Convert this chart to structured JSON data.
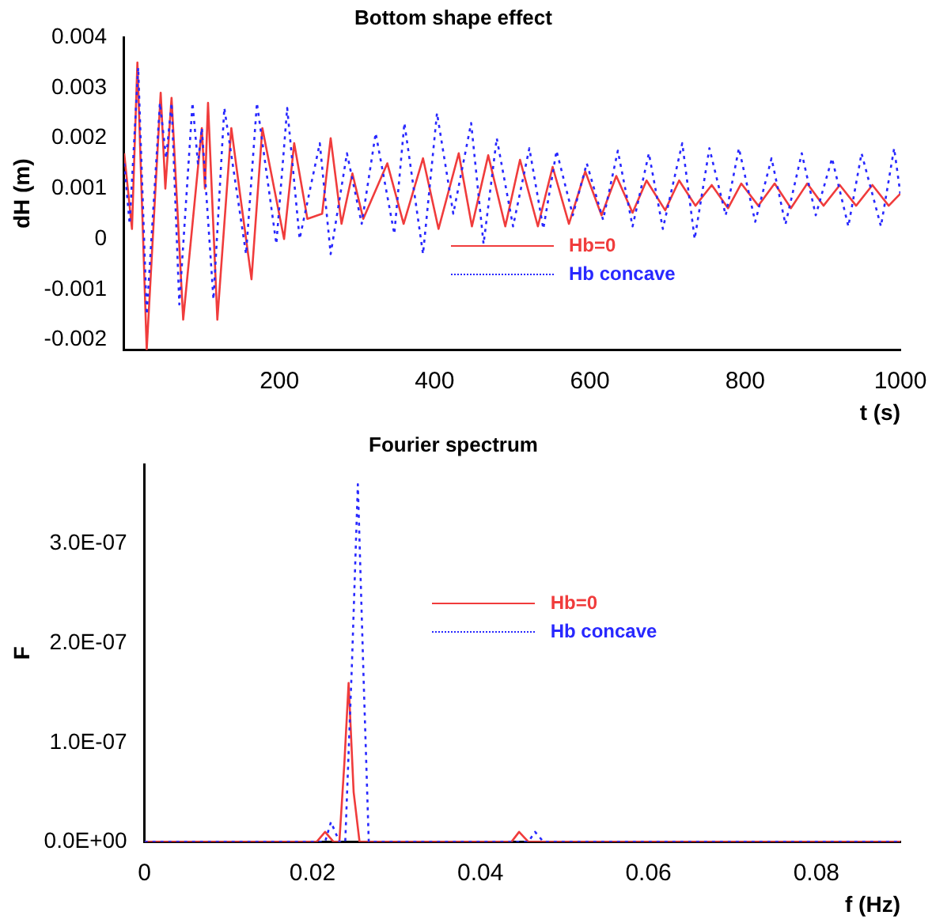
{
  "chart_data": [
    {
      "type": "line",
      "title": "Bottom shape effect",
      "xlabel": "t (s)",
      "ylabel": "dH (m)",
      "xlim": [
        0,
        1000
      ],
      "xticks": [
        200,
        400,
        600,
        800,
        1000
      ],
      "ylim": [
        -0.0022,
        0.004
      ],
      "yticks": [
        -0.002,
        -0.001,
        0,
        0.001,
        0.002,
        0.003,
        0.004
      ],
      "grid": false,
      "legend": "center",
      "marker": "none",
      "series": [
        {
          "name": "Hb=0",
          "color": "#f03c3c",
          "line_style": "solid",
          "x": [
            0,
            10,
            17,
            29,
            47,
            53,
            61,
            76,
            100,
            104,
            108,
            120,
            138,
            150,
            164,
            178,
            206,
            219,
            236,
            255,
            266,
            280,
            294,
            308,
            339,
            360,
            385,
            405,
            431,
            448,
            469,
            491,
            510,
            533,
            552,
            573,
            594,
            615,
            634,
            655,
            673,
            697,
            715,
            736,
            757,
            778,
            795,
            817,
            838,
            859,
            880,
            901,
            922,
            943,
            964,
            985,
            1000
          ],
          "values": [
            0.0017,
            0.0002,
            0.0035,
            -0.0022,
            0.0029,
            0.001,
            0.0028,
            -0.0016,
            0.0022,
            0.001,
            0.0027,
            -0.0016,
            0.0022,
            0.0008,
            -0.0008,
            0.0022,
            0,
            0.0019,
            0.0004,
            0.0005,
            0.002,
            0.0003,
            0.0013,
            0.0004,
            0.0015,
            0.0003,
            0.0016,
            0.0002,
            0.0017,
            0.00025,
            0.00166,
            0.00025,
            0.00157,
            0.00025,
            0.00143,
            0.0003,
            0.00134,
            0.00047,
            0.00125,
            0.00052,
            0.00116,
            0.00057,
            0.00116,
            0.00066,
            0.00107,
            0.00061,
            0.0011,
            0.00066,
            0.0011,
            0.00061,
            0.0011,
            0.00066,
            0.00107,
            0.00066,
            0.00107,
            0.00066,
            0.0009
          ]
        },
        {
          "name": "Hb concave",
          "color": "#2828ff",
          "line_style": "dotted",
          "x": [
            0,
            7,
            18,
            29,
            46,
            54,
            61,
            71,
            88,
            95,
            100,
            115,
            129,
            157,
            171,
            196,
            210,
            226,
            252,
            266,
            287,
            306,
            324,
            348,
            361,
            385,
            403,
            424,
            447,
            463,
            480,
            501,
            522,
            540,
            557,
            578,
            596,
            617,
            636,
            655,
            676,
            694,
            719,
            735,
            754,
            775,
            792,
            813,
            834,
            852,
            873,
            891,
            912,
            933,
            950,
            975,
            992,
            1000
          ],
          "values": [
            0.0015,
            0.0003,
            0.0034,
            -0.0015,
            0.0027,
            0.0016,
            0.0027,
            -0.0013,
            0.0027,
            0.0015,
            0.0022,
            -0.0012,
            0.0026,
            -0.0003,
            0.0027,
            -0.0001,
            0.0026,
            0,
            0.0019,
            -0.0003,
            0.0017,
            0.0003,
            0.0021,
            0.0001,
            0.0023,
            -0.0003,
            0.0025,
            0.0005,
            0.0023,
            -0.0001,
            0.002,
            0.00025,
            0.0018,
            0.0002,
            0.00175,
            0.00047,
            0.0015,
            0.00038,
            0.00175,
            0.00025,
            0.0017,
            0.0002,
            0.0019,
            0,
            0.0018,
            0.00047,
            0.0018,
            0.00034,
            0.0016,
            0.00029,
            0.0017,
            0.00047,
            0.0016,
            0.00025,
            0.0017,
            0.00025,
            0.0018,
            0.0009
          ]
        }
      ]
    },
    {
      "type": "line",
      "title": "Fourier spectrum",
      "xlabel": "f (Hz)",
      "ylabel": "F",
      "xlim": [
        0,
        0.09
      ],
      "xticks": [
        0,
        0.02,
        0.04,
        0.06,
        0.08
      ],
      "ylim": [
        0,
        3.8e-07
      ],
      "yticks": [
        {
          "value": 0,
          "label": "0.0E+00"
        },
        {
          "value": 1e-07,
          "label": "1.0E-07"
        },
        {
          "value": 2e-07,
          "label": "2.0E-07"
        },
        {
          "value": 3e-07,
          "label": "3.0E-07"
        }
      ],
      "grid": false,
      "legend": "top",
      "marker": "none",
      "series": [
        {
          "name": "Hb=0",
          "color": "#f03c3c",
          "line_style": "solid",
          "x": [
            0,
            0.019,
            0.0205,
            0.0215,
            0.0225,
            0.0232,
            0.0238,
            0.0243,
            0.0249,
            0.0256,
            0.03,
            0.042,
            0.0437,
            0.0446,
            0.0457,
            0.05,
            0.09
          ],
          "values": [
            0,
            0,
            0,
            1e-08,
            0,
            0,
            8e-08,
            1.6e-07,
            5e-08,
            0,
            0,
            0,
            0,
            1e-08,
            0,
            0,
            0
          ]
        },
        {
          "name": "Hb concave",
          "color": "#2828ff",
          "line_style": "dotted",
          "x": [
            0,
            0.02,
            0.0215,
            0.0222,
            0.0232,
            0.0239,
            0.0247,
            0.0254,
            0.0261,
            0.0267,
            0.03,
            0.044,
            0.0457,
            0.0465,
            0.0475,
            0.05,
            0.09
          ],
          "values": [
            0,
            0,
            0,
            2e-08,
            0,
            0,
            1.8e-07,
            3.6e-07,
            1.6e-07,
            0,
            0,
            0,
            0,
            1e-08,
            0,
            0,
            0
          ]
        }
      ]
    }
  ]
}
